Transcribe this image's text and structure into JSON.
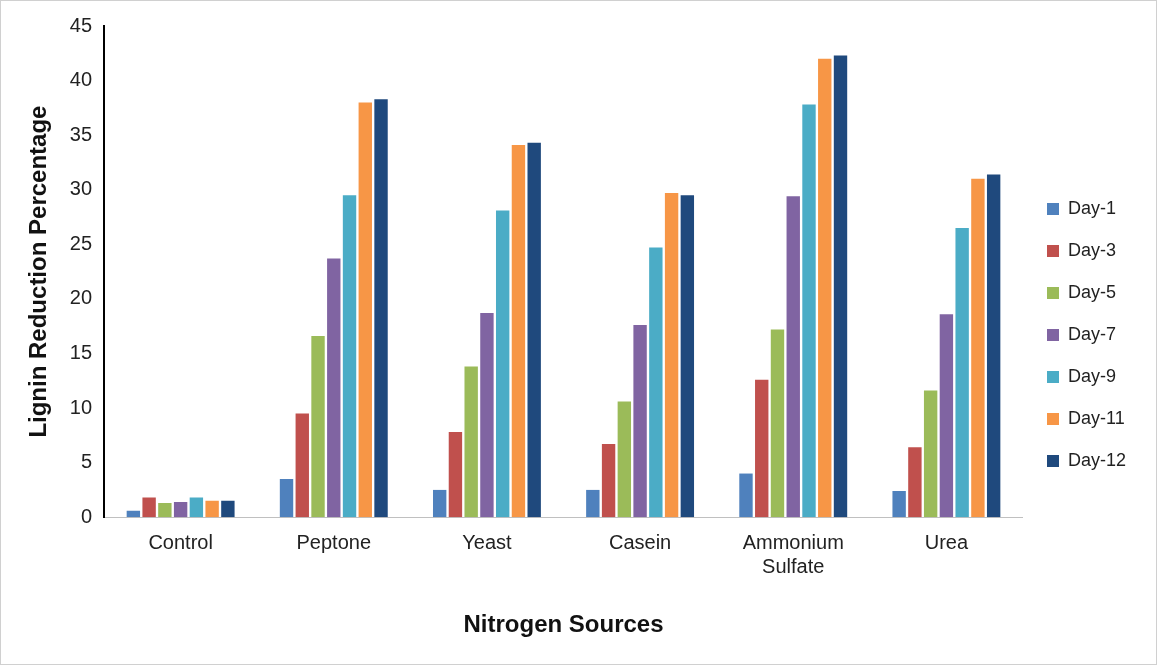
{
  "chart_data": {
    "type": "bar",
    "xlabel": "Nitrogen Sources",
    "ylabel": "Lignin Reduction Percentage",
    "categories": [
      "Control",
      "Peptone",
      "Yeast",
      "Casein",
      "Ammonium Sulfate",
      "Urea"
    ],
    "series": [
      {
        "name": "Day-1",
        "color": "#4f81bd",
        "values": [
          0.6,
          3.5,
          2.5,
          2.5,
          4.0,
          2.4
        ]
      },
      {
        "name": "Day-3",
        "color": "#c0504d",
        "values": [
          1.8,
          9.5,
          7.8,
          6.7,
          12.6,
          6.4
        ]
      },
      {
        "name": "Day-5",
        "color": "#9bbb59",
        "values": [
          1.3,
          16.6,
          13.8,
          10.6,
          17.2,
          11.6
        ]
      },
      {
        "name": "Day-7",
        "color": "#8064a2",
        "values": [
          1.4,
          23.7,
          18.7,
          17.6,
          29.4,
          18.6
        ]
      },
      {
        "name": "Day-9",
        "color": "#4bacc6",
        "values": [
          1.8,
          29.5,
          28.1,
          24.7,
          37.8,
          26.5
        ]
      },
      {
        "name": "Day-11",
        "color": "#f79646",
        "values": [
          1.5,
          38.0,
          34.1,
          29.7,
          42.0,
          31.0
        ]
      },
      {
        "name": "Day-12",
        "color": "#1f497d",
        "values": [
          1.5,
          38.3,
          34.3,
          29.5,
          42.3,
          31.4
        ]
      }
    ],
    "ylim": [
      0,
      45
    ],
    "yticks": [
      0,
      5,
      10,
      15,
      20,
      25,
      30,
      35,
      40,
      45
    ],
    "grid": false,
    "legend": "right"
  }
}
